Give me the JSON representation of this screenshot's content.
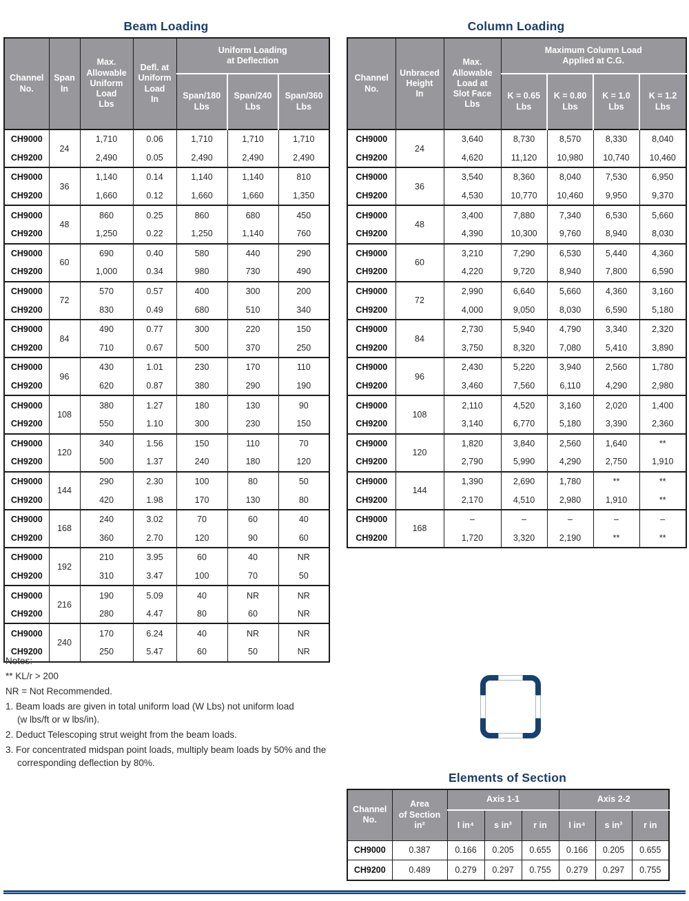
{
  "titles": {
    "beam": "Beam Loading",
    "column": "Column Loading",
    "elements": "Elements of Section"
  },
  "colors": {
    "title_navy": "#1a3c6d",
    "header_grey": "#98979c",
    "tube_navy": "#17406e",
    "border_black": "#1a1a1a"
  },
  "beam_table": {
    "headers": {
      "channel": "Channel\nNo.",
      "span": "Span\nIn",
      "max_load": "Max.\nAllowable\nUniform\nLoad\nLbs",
      "deflection": "Defl. at\nUniform\nLoad\nIn",
      "group": "Uniform Loading\nat Deflection",
      "subs": [
        "Span/180\nLbs",
        "Span/240\nLbs",
        "Span/360\nLbs"
      ]
    },
    "groups": [
      {
        "span": "24",
        "rows": [
          {
            "channel": "CH9000",
            "values": [
              "1,710",
              "0.06",
              "1,710",
              "1,710",
              "1,710"
            ]
          },
          {
            "channel": "CH9200",
            "values": [
              "2,490",
              "0.05",
              "2,490",
              "2,490",
              "2,490"
            ]
          }
        ]
      },
      {
        "span": "36",
        "rows": [
          {
            "channel": "CH9000",
            "values": [
              "1,140",
              "0.14",
              "1,140",
              "1,140",
              "810"
            ]
          },
          {
            "channel": "CH9200",
            "values": [
              "1,660",
              "0.12",
              "1,660",
              "1,660",
              "1,350"
            ]
          }
        ]
      },
      {
        "span": "48",
        "rows": [
          {
            "channel": "CH9000",
            "values": [
              "860",
              "0.25",
              "860",
              "680",
              "450"
            ]
          },
          {
            "channel": "CH9200",
            "values": [
              "1,250",
              "0.22",
              "1,250",
              "1,140",
              "760"
            ]
          }
        ]
      },
      {
        "span": "60",
        "rows": [
          {
            "channel": "CH9000",
            "values": [
              "690",
              "0.40",
              "580",
              "440",
              "290"
            ]
          },
          {
            "channel": "CH9200",
            "values": [
              "1,000",
              "0.34",
              "980",
              "730",
              "490"
            ]
          }
        ]
      },
      {
        "span": "72",
        "rows": [
          {
            "channel": "CH9000",
            "values": [
              "570",
              "0.57",
              "400",
              "300",
              "200"
            ]
          },
          {
            "channel": "CH9200",
            "values": [
              "830",
              "0.49",
              "680",
              "510",
              "340"
            ]
          }
        ]
      },
      {
        "span": "84",
        "rows": [
          {
            "channel": "CH9000",
            "values": [
              "490",
              "0.77",
              "300",
              "220",
              "150"
            ]
          },
          {
            "channel": "CH9200",
            "values": [
              "710",
              "0.67",
              "500",
              "370",
              "250"
            ]
          }
        ]
      },
      {
        "span": "96",
        "rows": [
          {
            "channel": "CH9000",
            "values": [
              "430",
              "1.01",
              "230",
              "170",
              "110"
            ]
          },
          {
            "channel": "CH9200",
            "values": [
              "620",
              "0.87",
              "380",
              "290",
              "190"
            ]
          }
        ]
      },
      {
        "span": "108",
        "rows": [
          {
            "channel": "CH9000",
            "values": [
              "380",
              "1.27",
              "180",
              "130",
              "90"
            ]
          },
          {
            "channel": "CH9200",
            "values": [
              "550",
              "1.10",
              "300",
              "230",
              "150"
            ]
          }
        ]
      },
      {
        "span": "120",
        "rows": [
          {
            "channel": "CH9000",
            "values": [
              "340",
              "1.56",
              "150",
              "110",
              "70"
            ]
          },
          {
            "channel": "CH9200",
            "values": [
              "500",
              "1.37",
              "240",
              "180",
              "120"
            ]
          }
        ]
      },
      {
        "span": "144",
        "rows": [
          {
            "channel": "CH9000",
            "values": [
              "290",
              "2.30",
              "100",
              "80",
              "50"
            ]
          },
          {
            "channel": "CH9200",
            "values": [
              "420",
              "1.98",
              "170",
              "130",
              "80"
            ]
          }
        ]
      },
      {
        "span": "168",
        "rows": [
          {
            "channel": "CH9000",
            "values": [
              "240",
              "3.02",
              "70",
              "60",
              "40"
            ]
          },
          {
            "channel": "CH9200",
            "values": [
              "360",
              "2.70",
              "120",
              "90",
              "60"
            ]
          }
        ]
      },
      {
        "span": "192",
        "rows": [
          {
            "channel": "CH9000",
            "values": [
              "210",
              "3.95",
              "60",
              "40",
              "NR"
            ]
          },
          {
            "channel": "CH9200",
            "values": [
              "310",
              "3.47",
              "100",
              "70",
              "50"
            ]
          }
        ]
      },
      {
        "span": "216",
        "rows": [
          {
            "channel": "CH9000",
            "values": [
              "190",
              "5.09",
              "40",
              "NR",
              "NR"
            ]
          },
          {
            "channel": "CH9200",
            "values": [
              "280",
              "4.47",
              "80",
              "60",
              "NR"
            ]
          }
        ]
      },
      {
        "span": "240",
        "rows": [
          {
            "channel": "CH9000",
            "values": [
              "170",
              "6.24",
              "40",
              "NR",
              "NR"
            ]
          },
          {
            "channel": "CH9200",
            "values": [
              "250",
              "5.47",
              "60",
              "50",
              "NR"
            ]
          }
        ]
      }
    ]
  },
  "column_table": {
    "headers": {
      "channel": "Channel\nNo.",
      "height": "Unbraced\nHeight\nIn",
      "max_load": "Max.\nAllowable\nLoad at\nSlot Face\nLbs",
      "group": "Maximum Column Load\nApplied at C.G.",
      "subs": [
        "K = 0.65\nLbs",
        "K = 0.80\nLbs",
        "K = 1.0\nLbs",
        "K = 1.2\nLbs"
      ]
    },
    "groups": [
      {
        "height": "24",
        "rows": [
          {
            "channel": "CH9000",
            "values": [
              "3,640",
              "8,730",
              "8,570",
              "8,330",
              "8,040"
            ]
          },
          {
            "channel": "CH9200",
            "values": [
              "4,620",
              "11,120",
              "10,980",
              "10,740",
              "10,460"
            ]
          }
        ]
      },
      {
        "height": "36",
        "rows": [
          {
            "channel": "CH9000",
            "values": [
              "3,540",
              "8,360",
              "8,040",
              "7,530",
              "6,950"
            ]
          },
          {
            "channel": "CH9200",
            "values": [
              "4,530",
              "10,770",
              "10,460",
              "9,950",
              "9,370"
            ]
          }
        ]
      },
      {
        "height": "48",
        "rows": [
          {
            "channel": "CH9000",
            "values": [
              "3,400",
              "7,880",
              "7,340",
              "6,530",
              "5,660"
            ]
          },
          {
            "channel": "CH9200",
            "values": [
              "4,390",
              "10,300",
              "9,760",
              "8,940",
              "8,030"
            ]
          }
        ]
      },
      {
        "height": "60",
        "rows": [
          {
            "channel": "CH9000",
            "values": [
              "3,210",
              "7,290",
              "6,530",
              "5,440",
              "4,360"
            ]
          },
          {
            "channel": "CH9200",
            "values": [
              "4,220",
              "9,720",
              "8,940",
              "7,800",
              "6,590"
            ]
          }
        ]
      },
      {
        "height": "72",
        "rows": [
          {
            "channel": "CH9000",
            "values": [
              "2,990",
              "6,640",
              "5,660",
              "4,360",
              "3,160"
            ]
          },
          {
            "channel": "CH9200",
            "values": [
              "4,000",
              "9,050",
              "8,030",
              "6,590",
              "5,180"
            ]
          }
        ]
      },
      {
        "height": "84",
        "rows": [
          {
            "channel": "CH9000",
            "values": [
              "2,730",
              "5,940",
              "4,790",
              "3,340",
              "2,320"
            ]
          },
          {
            "channel": "CH9200",
            "values": [
              "3,750",
              "8,320",
              "7,080",
              "5,410",
              "3,890"
            ]
          }
        ]
      },
      {
        "height": "96",
        "rows": [
          {
            "channel": "CH9000",
            "values": [
              "2,430",
              "5,220",
              "3,940",
              "2,560",
              "1,780"
            ]
          },
          {
            "channel": "CH9200",
            "values": [
              "3,460",
              "7,560",
              "6,110",
              "4,290",
              "2,980"
            ]
          }
        ]
      },
      {
        "height": "108",
        "rows": [
          {
            "channel": "CH9000",
            "values": [
              "2,110",
              "4,520",
              "3,160",
              "2,020",
              "1,400"
            ]
          },
          {
            "channel": "CH9200",
            "values": [
              "3,140",
              "6,770",
              "5,180",
              "3,390",
              "2,360"
            ]
          }
        ]
      },
      {
        "height": "120",
        "rows": [
          {
            "channel": "CH9000",
            "values": [
              "1,820",
              "3,840",
              "2,560",
              "1,640",
              "**"
            ]
          },
          {
            "channel": "CH9200",
            "values": [
              "2,790",
              "5,990",
              "4,290",
              "2,750",
              "1,910"
            ]
          }
        ]
      },
      {
        "height": "144",
        "rows": [
          {
            "channel": "CH9000",
            "values": [
              "1,390",
              "2,690",
              "1,780",
              "**",
              "**"
            ]
          },
          {
            "channel": "CH9200",
            "values": [
              "2,170",
              "4,510",
              "2,980",
              "1,910",
              "**"
            ]
          }
        ]
      },
      {
        "height": "168",
        "rows": [
          {
            "channel": "CH9000",
            "values": [
              "–",
              "–",
              "–",
              "–",
              "–"
            ]
          },
          {
            "channel": "CH9200",
            "values": [
              "1,720",
              "3,320",
              "2,190",
              "**",
              "**"
            ]
          }
        ]
      }
    ]
  },
  "elements_table": {
    "headers": {
      "channel": "Channel\nNo.",
      "area": "Area\nof Section\nin²",
      "axis1": "Axis 1-1",
      "axis2": "Axis 2-2",
      "subs": [
        "I in⁴",
        "s in³",
        "r in"
      ]
    },
    "rows": [
      {
        "channel": "CH9000",
        "values": [
          "0.387",
          "0.166",
          "0.205",
          "0.655",
          "0.166",
          "0.205",
          "0.655"
        ]
      },
      {
        "channel": "CH9200",
        "values": [
          "0.489",
          "0.279",
          "0.297",
          "0.755",
          "0.279",
          "0.297",
          "0.755"
        ]
      }
    ]
  },
  "notes": {
    "heading": "Notes:",
    "lines": [
      "** KL/r > 200",
      "NR = Not Recommended."
    ],
    "numbered": [
      {
        "lines": [
          "1. Beam loads are given in total uniform load (W Lbs) not uniform load",
          "(w lbs/ft or w lbs/in)."
        ]
      },
      {
        "lines": [
          "2. Deduct Telescoping strut weight from the beam loads."
        ]
      },
      {
        "lines": [
          "3. For concentrated midspan point loads, multiply beam loads by 50% and the",
          "corresponding deflection by 80%."
        ]
      }
    ]
  }
}
